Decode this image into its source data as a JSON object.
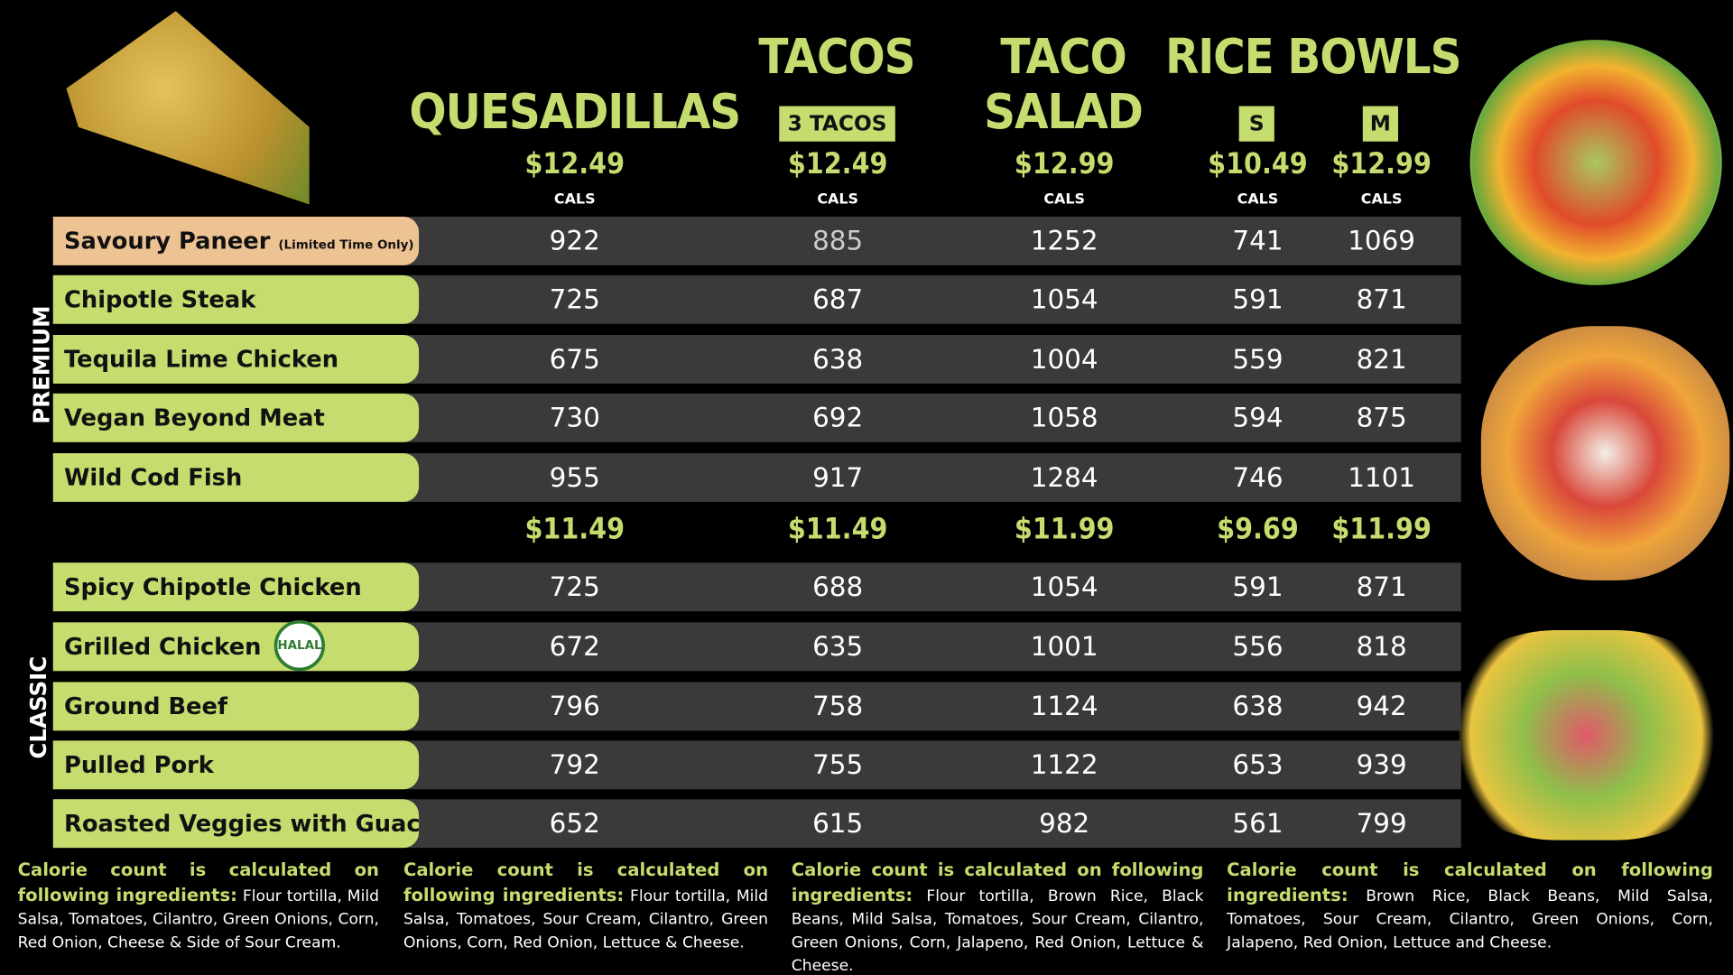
{
  "headers": {
    "quesadillas": "QUESADILLAS",
    "tacos": "TACOS",
    "tacos_sub": "3 TACOS",
    "taco": "TACO",
    "salad": "SALAD",
    "rice_bowls": "RICE BOWLS",
    "small": "S",
    "medium": "M",
    "cals": "CALS"
  },
  "premium_prices": [
    "$12.49",
    "$12.49",
    "$12.99",
    "$10.49",
    "$12.99"
  ],
  "classic_prices": [
    "$11.49",
    "$11.49",
    "$11.99",
    "$9.69",
    "$11.99"
  ],
  "section_labels": {
    "premium": "PREMIUM",
    "classic": "CLASSIC"
  },
  "premium_rows": [
    {
      "name": "Savoury Paneer",
      "note": "(Limited Time Only)",
      "values": [
        "922",
        "885",
        "1252",
        "741",
        "1069"
      ]
    },
    {
      "name": "Chipotle Steak",
      "values": [
        "725",
        "687",
        "1054",
        "591",
        "871"
      ]
    },
    {
      "name": "Tequila Lime Chicken",
      "values": [
        "675",
        "638",
        "1004",
        "559",
        "821"
      ]
    },
    {
      "name": "Vegan Beyond Meat",
      "values": [
        "730",
        "692",
        "1058",
        "594",
        "875"
      ]
    },
    {
      "name": "Wild Cod Fish",
      "values": [
        "955",
        "917",
        "1284",
        "746",
        "1101"
      ]
    }
  ],
  "classic_rows": [
    {
      "name": "Spicy Chipotle Chicken",
      "values": [
        "725",
        "688",
        "1054",
        "591",
        "871"
      ]
    },
    {
      "name": "Grilled Chicken",
      "badge": "HALAL",
      "values": [
        "672",
        "635",
        "1001",
        "556",
        "818"
      ]
    },
    {
      "name": "Ground Beef",
      "values": [
        "796",
        "758",
        "1124",
        "638",
        "942"
      ]
    },
    {
      "name": "Pulled Pork",
      "values": [
        "792",
        "755",
        "1122",
        "653",
        "939"
      ]
    },
    {
      "name": "Roasted Veggies with Guac",
      "values": [
        "652",
        "615",
        "982",
        "561",
        "799"
      ]
    }
  ],
  "notes": [
    {
      "title": "Calorie count is calculated on following ingredients:",
      "body": "Flour tortilla, Mild Salsa, Tomatoes, Cilantro, Green Onions, Corn, Red Onion, Cheese & Side of Sour Cream."
    },
    {
      "title": "Calorie count is calculated on following ingredients:",
      "body": "Flour tortilla, Mild Salsa, Tomatoes, Sour Cream, Cilantro, Green Onions, Corn, Red Onion, Lettuce & Cheese."
    },
    {
      "title": "Calorie count is calculated on following ingredients:",
      "body": "Flour tortilla, Brown Rice, Black Beans, Mild Salsa, Tomatoes, Sour Cream, Cilantro, Green Onions, Corn, Jalapeno, Red Onion, Lettuce & Cheese."
    },
    {
      "title": "Calorie count is calculated on following ingredients:",
      "body": "Brown Rice, Black Beans, Mild Salsa, Tomatoes, Sour Cream, Cilantro, Green Onions, Corn, Jalapeno, Red Onion, Lettuce and Cheese."
    }
  ],
  "colors": {
    "accent": "#c5dc6e",
    "limited": "#eec393",
    "row": "#3a3a3a",
    "background": "#000000"
  }
}
